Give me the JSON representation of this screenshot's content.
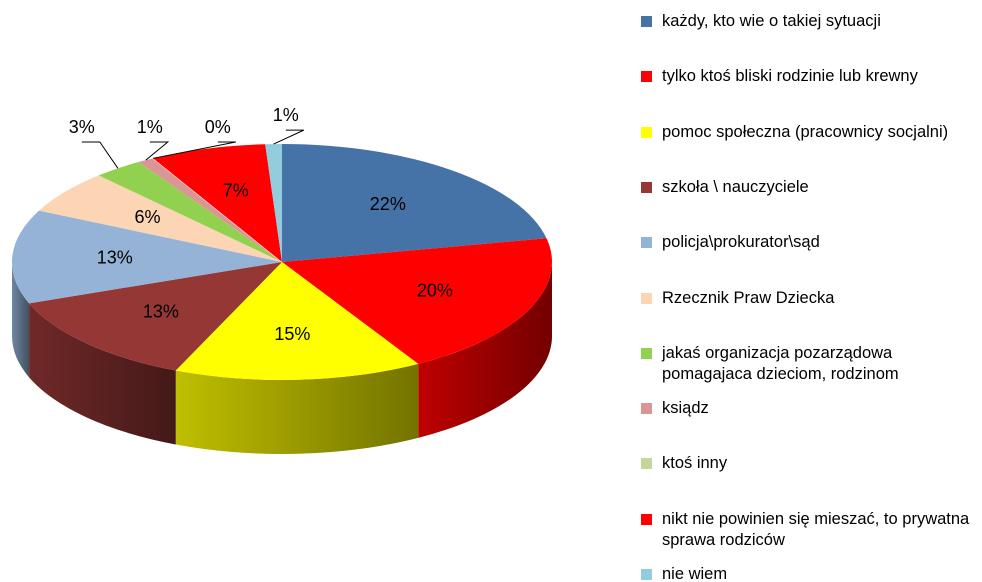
{
  "chart_data": {
    "type": "pie3d",
    "categories": [
      "każdy, kto wie o takiej sytuacji",
      "tylko ktoś bliski rodzinie lub krewny",
      "pomoc społeczna (pracownicy socjalni)",
      "szkoła \\ nauczyciele",
      "policja\\prokurator\\sąd",
      "Rzecznik Praw Dziecka",
      "jakaś organizacja pozarządowa pomagajaca dzieciom, rodzinom",
      "ksiądz",
      "ktoś inny",
      "nikt nie powinien się mieszać, to prywatna sprawa rodziców",
      "nie wiem"
    ],
    "values": [
      22,
      20,
      15,
      13,
      13,
      6,
      3,
      1,
      0,
      7,
      1
    ],
    "value_labels": [
      "22%",
      "20%",
      "15%",
      "13%",
      "13%",
      "6%",
      "3%",
      "1%",
      "0%",
      "7%",
      "1%"
    ],
    "colors": [
      "#4572a7",
      "#ff0000",
      "#ffff00",
      "#953735",
      "#95b3d7",
      "#fcd5b5",
      "#92d050",
      "#d99694",
      "#c3d69b",
      "#ff0000",
      "#93cddd"
    ],
    "legend": "right"
  }
}
